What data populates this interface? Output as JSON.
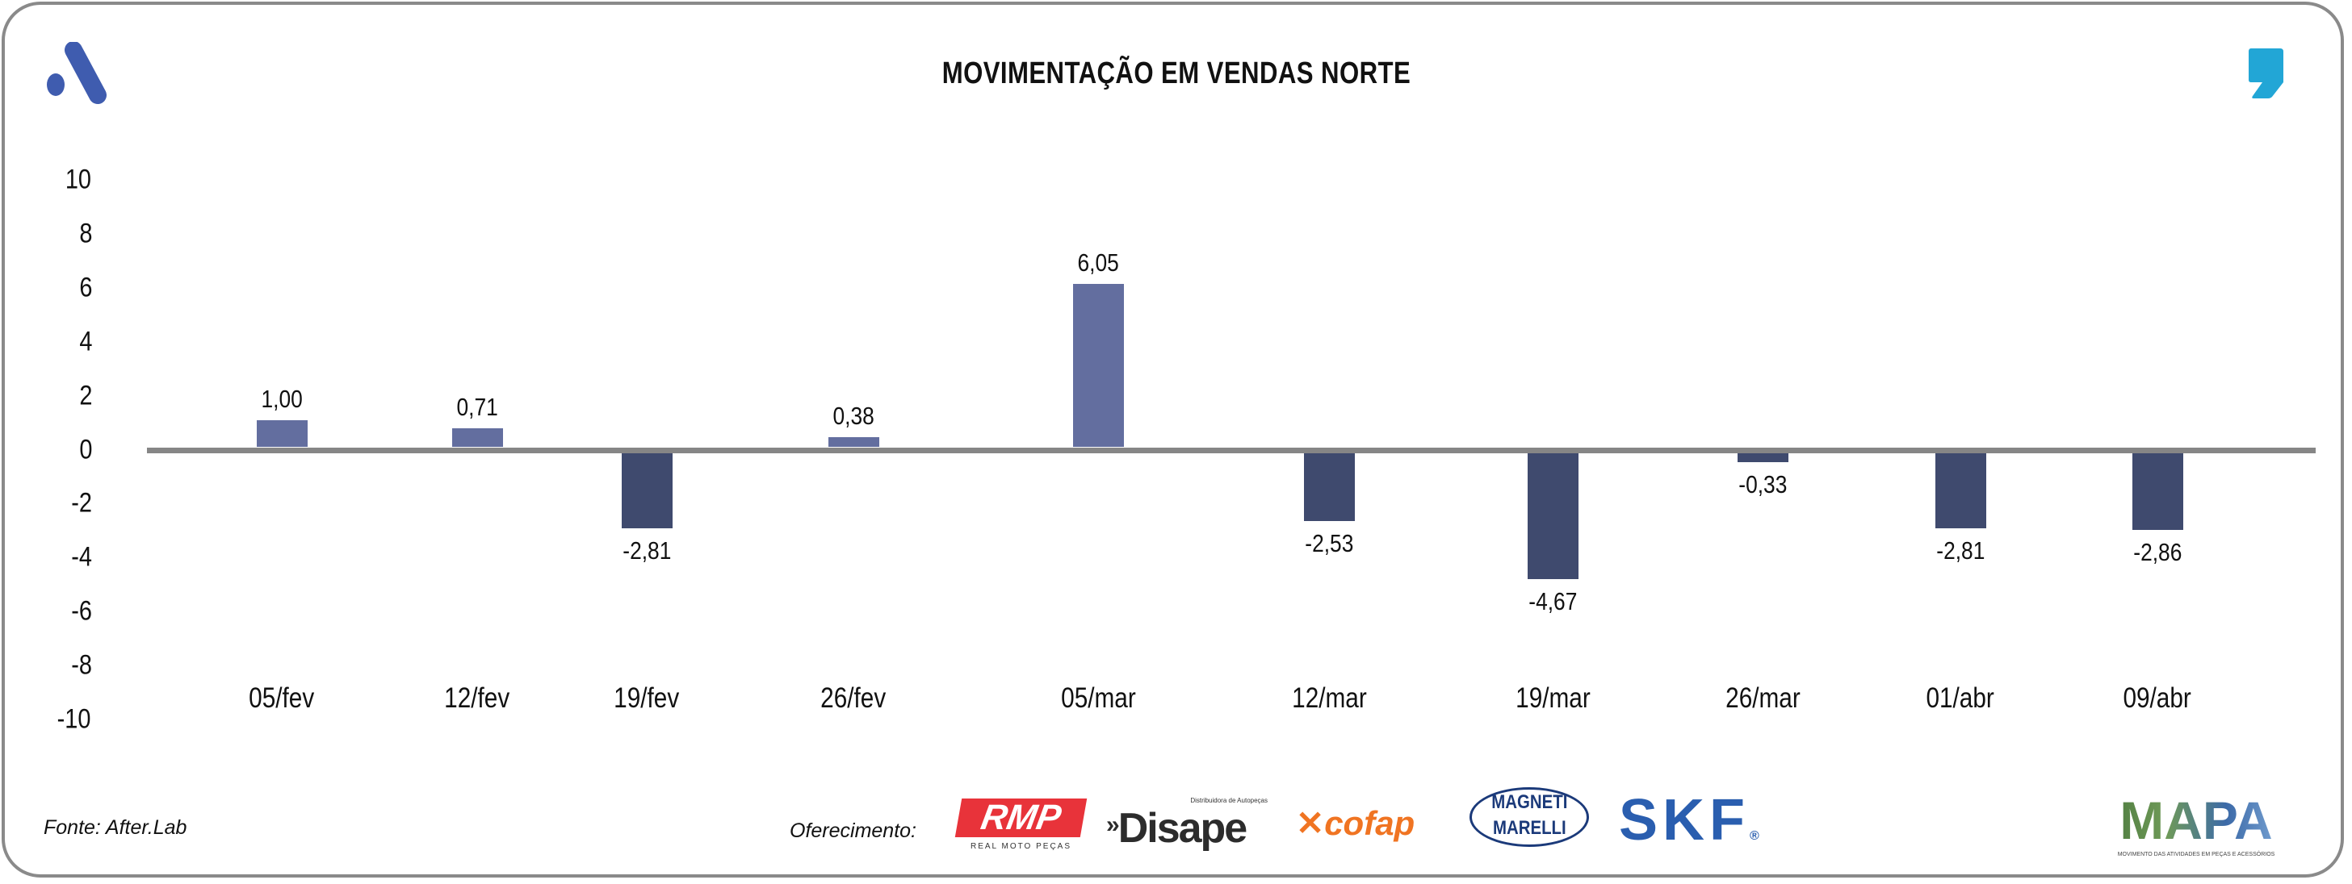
{
  "title": "MOVIMENTAÇÃO EM VENDAS NORTE",
  "source": "Fonte: After.Lab",
  "sponsor_label": "Oferecimento:",
  "sponsors": {
    "rmp": "RMP",
    "rmp_sub": "REAL MOTO PEÇAS",
    "disape": "Disape",
    "disape_sub": "Distribuidora de Autopeças",
    "cofap": "cofap",
    "magneti_1": "MAGNETI",
    "magneti_2": "MARELLI",
    "skf": "SKF",
    "mapa": "MAPA",
    "mapa_sub": "MOVIMENTO DAS ATIVIDADES EM PEÇAS E ACESSÓRIOS"
  },
  "colors": {
    "positive": "#636e9f",
    "negative": "#3f4a6e",
    "accent": "#3f5caf",
    "quote": "#22a6d6"
  },
  "chart_data": {
    "type": "bar",
    "title": "MOVIMENTAÇÃO EM VENDAS NORTE",
    "categories": [
      "05/fev",
      "12/fev",
      "19/fev",
      "26/fev",
      "05/mar",
      "12/mar",
      "19/mar",
      "26/mar",
      "01/abr",
      "09/abr"
    ],
    "values": [
      1.0,
      0.71,
      -2.81,
      0.38,
      6.05,
      -2.53,
      -4.67,
      -0.33,
      -2.81,
      -2.86
    ],
    "labels": [
      "1,00",
      "0,71",
      "-2,81",
      "0,38",
      "6,05",
      "-2,53",
      "-4,67",
      "-0,33",
      "-2,81",
      "-2,86"
    ],
    "yticks": [
      "10",
      "8",
      "6",
      "4",
      "2",
      "0",
      "-2",
      "-4",
      "-6",
      "-8",
      "-10"
    ],
    "ylim": [
      -10,
      10
    ],
    "xlabel": "",
    "ylabel": "",
    "grid": false,
    "legend": "none"
  }
}
